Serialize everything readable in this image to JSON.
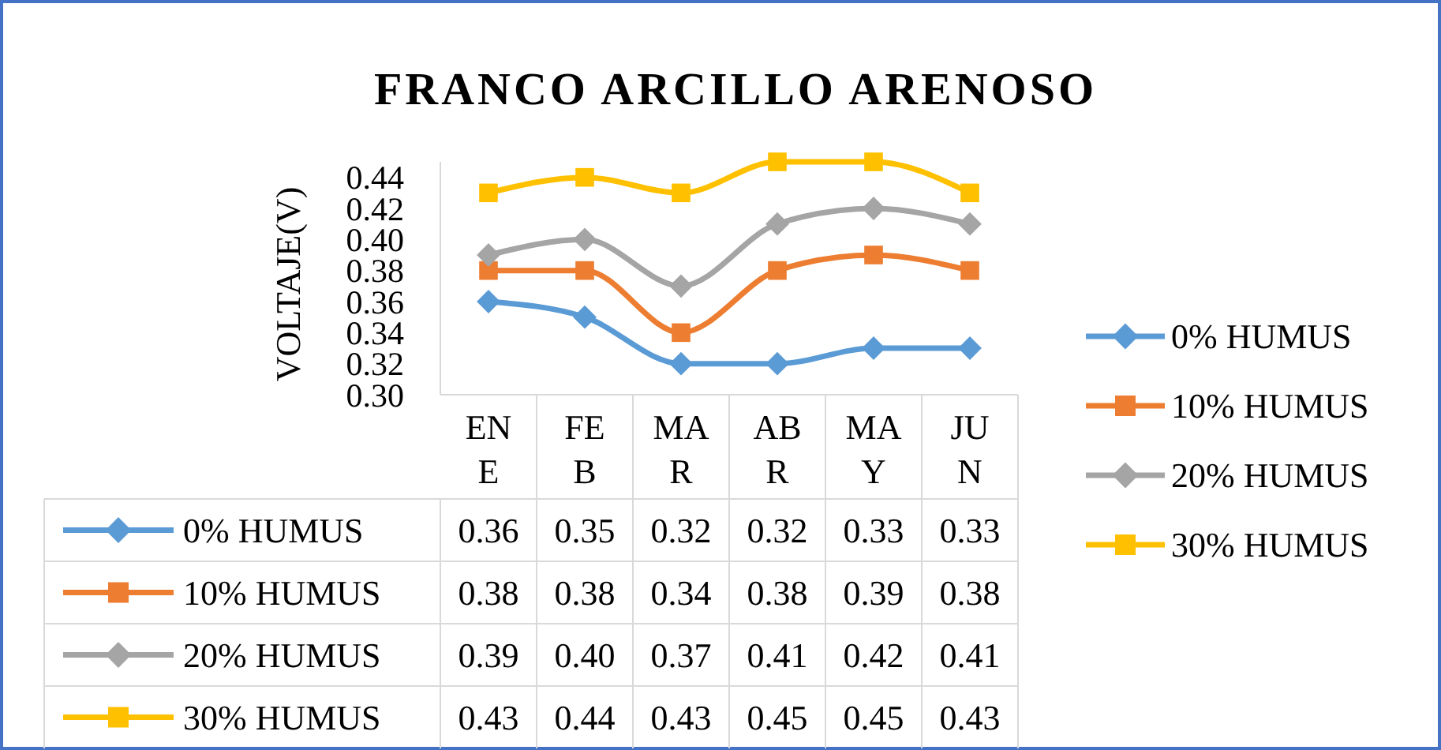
{
  "chart_data": {
    "type": "line",
    "title": "FRANCO ARCILLO ARENOSO",
    "ylabel": "VOLTAJE(V)",
    "categories": [
      "ENE",
      "FEB",
      "MAR",
      "ABR",
      "MAY",
      "JUN"
    ],
    "series": [
      {
        "name": "0% HUMUS",
        "color": "#5b9bd5",
        "marker": "diamond",
        "values": [
          0.36,
          0.35,
          0.32,
          0.32,
          0.33,
          0.33
        ],
        "value_labels": [
          "0.36",
          "0.35",
          "0.32",
          "0.32",
          "0.33",
          "0.33"
        ]
      },
      {
        "name": "10% HUMUS",
        "color": "#ed7d31",
        "marker": "square",
        "values": [
          0.38,
          0.38,
          0.34,
          0.38,
          0.39,
          0.38
        ],
        "value_labels": [
          "0.38",
          "0.38",
          "0.34",
          "0.38",
          "0.39",
          "0.38"
        ]
      },
      {
        "name": "20% HUMUS",
        "color": "#a5a5a5",
        "marker": "diamond",
        "values": [
          0.39,
          0.4,
          0.37,
          0.41,
          0.42,
          0.41
        ],
        "value_labels": [
          "0.39",
          "0.40",
          "0.37",
          "0.41",
          "0.42",
          "0.41"
        ]
      },
      {
        "name": "30% HUMUS",
        "color": "#ffc000",
        "marker": "square",
        "values": [
          0.43,
          0.44,
          0.43,
          0.45,
          0.45,
          0.43
        ],
        "value_labels": [
          "0.43",
          "0.44",
          "0.43",
          "0.45",
          "0.45",
          "0.43"
        ]
      }
    ],
    "ylim": [
      0.3,
      0.45
    ],
    "yticks": [
      {
        "value": 0.3,
        "label": "0.30"
      },
      {
        "value": 0.32,
        "label": "0.32"
      },
      {
        "value": 0.34,
        "label": "0.34"
      },
      {
        "value": 0.36,
        "label": "0.36"
      },
      {
        "value": 0.38,
        "label": "0.38"
      },
      {
        "value": 0.4,
        "label": "0.40"
      },
      {
        "value": 0.42,
        "label": "0.42"
      },
      {
        "value": 0.44,
        "label": "0.44"
      }
    ],
    "legend": "right",
    "grid": false
  }
}
